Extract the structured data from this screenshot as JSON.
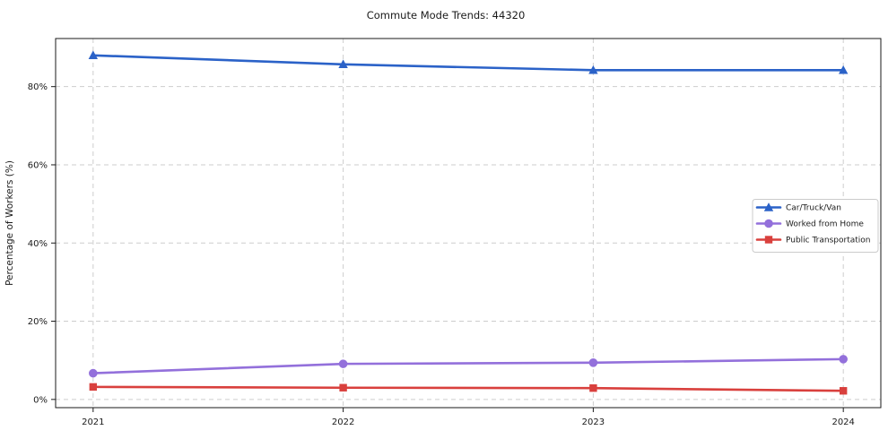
{
  "chart_data": {
    "type": "line",
    "title": "Commute Mode Trends: 44320",
    "xlabel": "",
    "ylabel": "Percentage of Workers (%)",
    "categories": [
      2021,
      2022,
      2023,
      2024
    ],
    "x_tick_labels": [
      "2021",
      "2022",
      "2023",
      "2024"
    ],
    "y_ticks": [
      0,
      20,
      40,
      60,
      80
    ],
    "y_tick_labels": [
      "0%",
      "20%",
      "40%",
      "60%",
      "80%"
    ],
    "xlim": [
      2020.85,
      2024.15
    ],
    "ylim": [
      -2.1,
      92.3
    ],
    "grid": true,
    "grid_style": "dashed",
    "legend_position": "center-right",
    "series": [
      {
        "name": "Car/Truck/Van",
        "color": "#2b62c8",
        "marker": "triangle",
        "values": [
          88.0,
          85.7,
          84.2,
          84.2
        ]
      },
      {
        "name": "Worked from Home",
        "color": "#9370db",
        "marker": "circle",
        "values": [
          6.7,
          9.1,
          9.4,
          10.3
        ]
      },
      {
        "name": "Public Transportation",
        "color": "#d9403d",
        "marker": "square",
        "values": [
          3.2,
          3.0,
          2.9,
          2.2
        ]
      }
    ]
  },
  "colors": {
    "background": "#ffffff",
    "grid": "#cdcdcd",
    "axis": "#1a1a1a",
    "text": "#1a1a1a",
    "legend_border": "#cbcbcb"
  }
}
